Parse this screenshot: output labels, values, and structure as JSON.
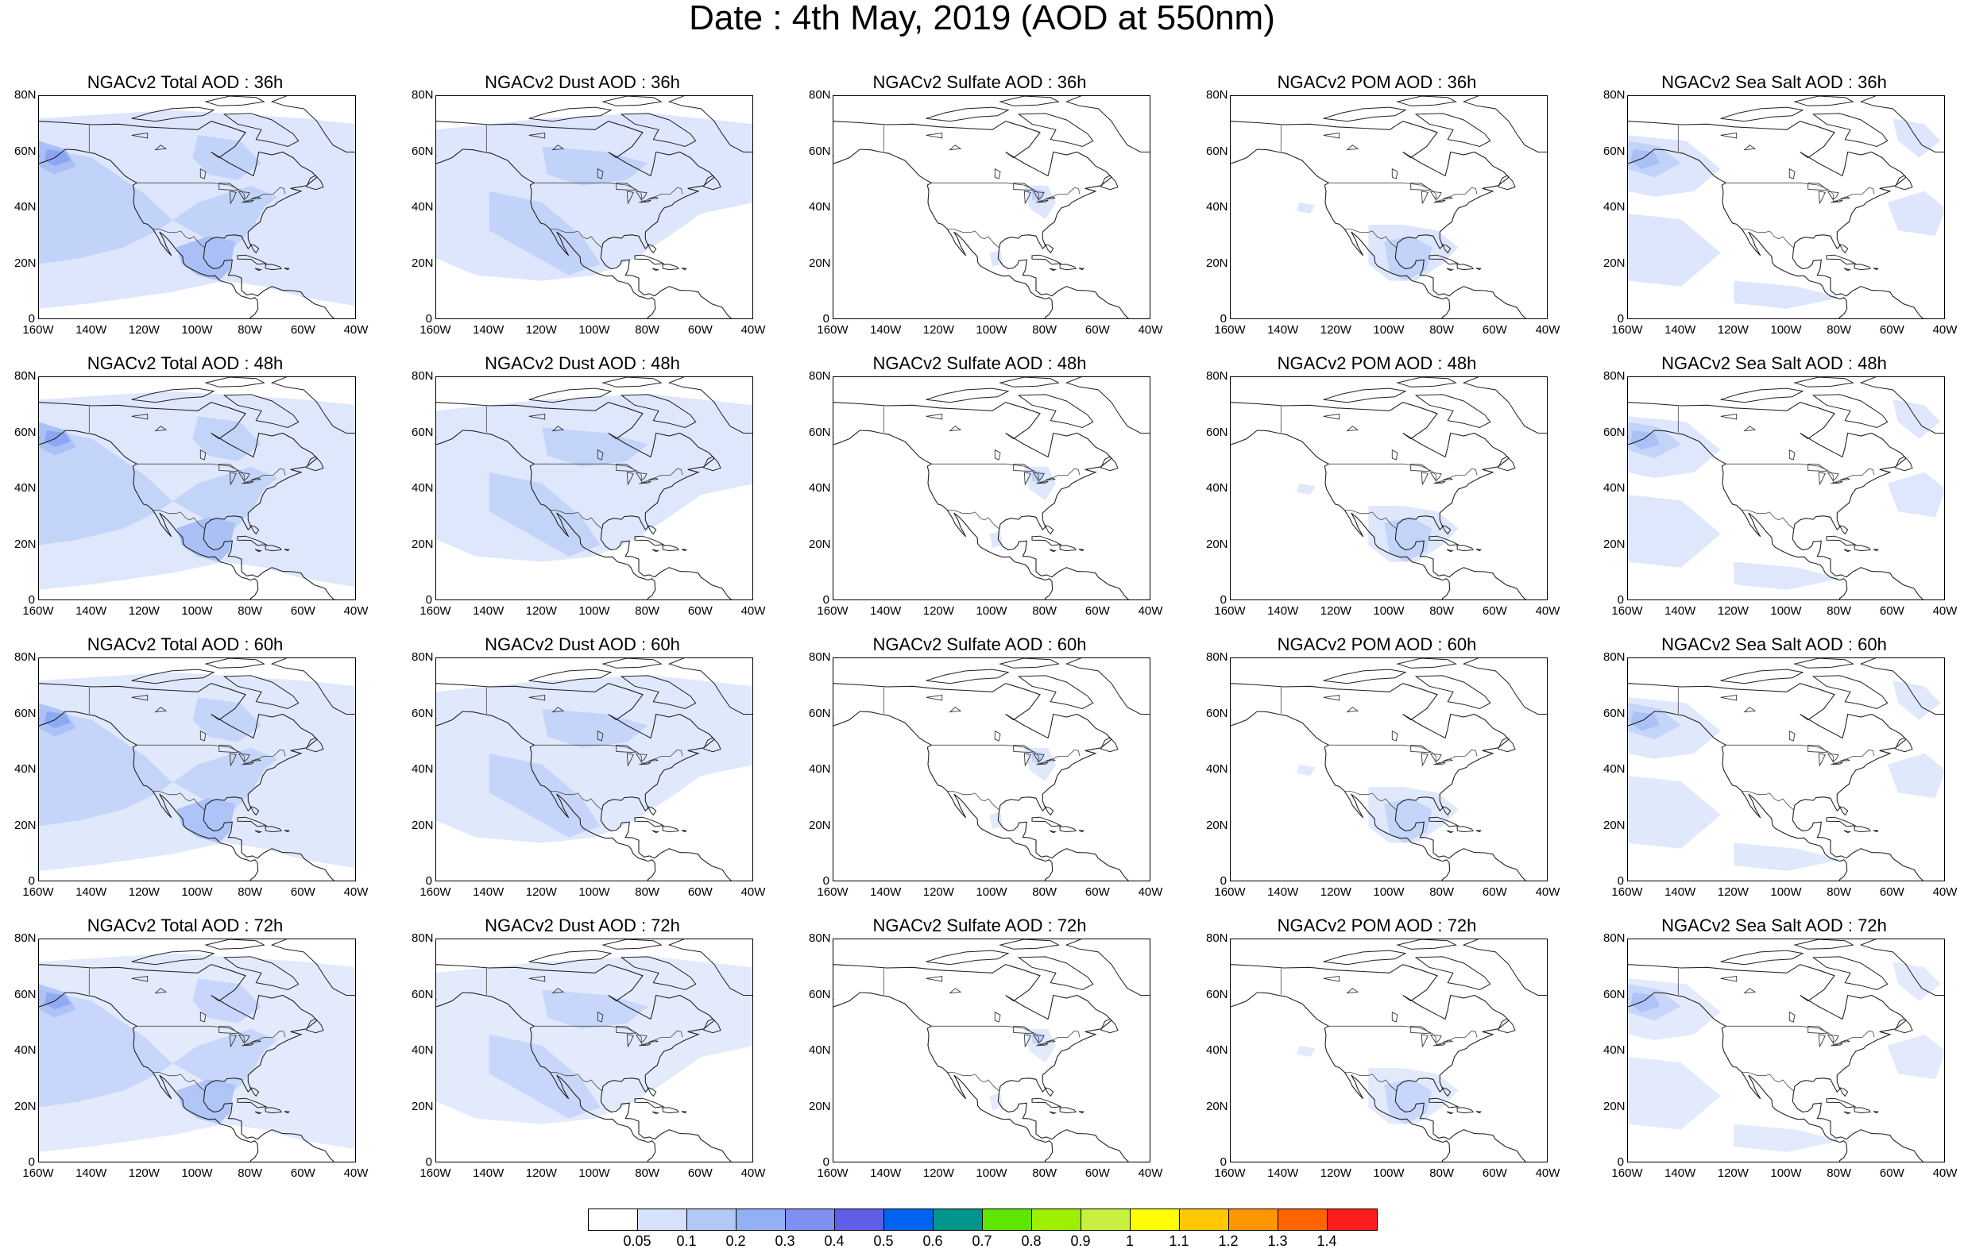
{
  "figure": {
    "title": "Date : 4th May, 2019 (AOD at 550nm)",
    "lat_labels": [
      "80N",
      "60N",
      "40N",
      "20N",
      "0"
    ],
    "lon_labels": [
      "160W",
      "140W",
      "120W",
      "100W",
      "80W",
      "60W",
      "40W"
    ],
    "map_extent": {
      "lon": [
        -160,
        -40
      ],
      "lat": [
        0,
        80
      ]
    },
    "panels": [
      {
        "title": "NGACv2 Total AOD : 36h",
        "species": "total",
        "lead_hour": 36
      },
      {
        "title": "NGACv2 Dust AOD : 36h",
        "species": "dust",
        "lead_hour": 36
      },
      {
        "title": "NGACv2 Sulfate AOD : 36h",
        "species": "sulfate",
        "lead_hour": 36
      },
      {
        "title": "NGACv2 POM AOD : 36h",
        "species": "pom",
        "lead_hour": 36
      },
      {
        "title": "NGACv2 Sea Salt AOD : 36h",
        "species": "seasalt",
        "lead_hour": 36
      },
      {
        "title": "NGACv2 Total AOD : 48h",
        "species": "total",
        "lead_hour": 48
      },
      {
        "title": "NGACv2 Dust AOD : 48h",
        "species": "dust",
        "lead_hour": 48
      },
      {
        "title": "NGACv2 Sulfate AOD : 48h",
        "species": "sulfate",
        "lead_hour": 48
      },
      {
        "title": "NGACv2 POM AOD : 48h",
        "species": "pom",
        "lead_hour": 48
      },
      {
        "title": "NGACv2 Sea Salt AOD : 48h",
        "species": "seasalt",
        "lead_hour": 48
      },
      {
        "title": "NGACv2 Total AOD : 60h",
        "species": "total",
        "lead_hour": 60
      },
      {
        "title": "NGACv2 Dust AOD : 60h",
        "species": "dust",
        "lead_hour": 60
      },
      {
        "title": "NGACv2 Sulfate AOD : 60h",
        "species": "sulfate",
        "lead_hour": 60
      },
      {
        "title": "NGACv2 POM AOD : 60h",
        "species": "pom",
        "lead_hour": 60
      },
      {
        "title": "NGACv2 Sea Salt AOD : 60h",
        "species": "seasalt",
        "lead_hour": 60
      },
      {
        "title": "NGACv2 Total AOD : 72h",
        "species": "total",
        "lead_hour": 72
      },
      {
        "title": "NGACv2 Dust AOD : 72h",
        "species": "dust",
        "lead_hour": 72
      },
      {
        "title": "NGACv2 Sulfate AOD : 72h",
        "species": "sulfate",
        "lead_hour": 72
      },
      {
        "title": "NGACv2 POM AOD : 72h",
        "species": "pom",
        "lead_hour": 72
      },
      {
        "title": "NGACv2 Sea Salt  AOD : 72h",
        "species": "seasalt",
        "lead_hour": 72
      }
    ]
  },
  "colorbar": {
    "labels": [
      "0.05",
      "0.1",
      "0.2",
      "0.3",
      "0.4",
      "0.5",
      "0.6",
      "0.7",
      "0.8",
      "0.9",
      "1",
      "1.1",
      "1.2",
      "1.3",
      "1.4"
    ],
    "colors": [
      "#ffffff",
      "#d6e2fb",
      "#b4c8f8",
      "#93aff5",
      "#7f8ff2",
      "#5f5fe8",
      "#0064f0",
      "#00968c",
      "#5ee600",
      "#9cf000",
      "#c8f040",
      "#ffff00",
      "#ffc800",
      "#ff9600",
      "#ff6400",
      "#ff1e1e"
    ]
  },
  "shading_colors": {
    "light": "#dde6fc",
    "mid": "#c2d3f9",
    "strong": "#a9bff6",
    "peak": "#8aa6f3"
  }
}
